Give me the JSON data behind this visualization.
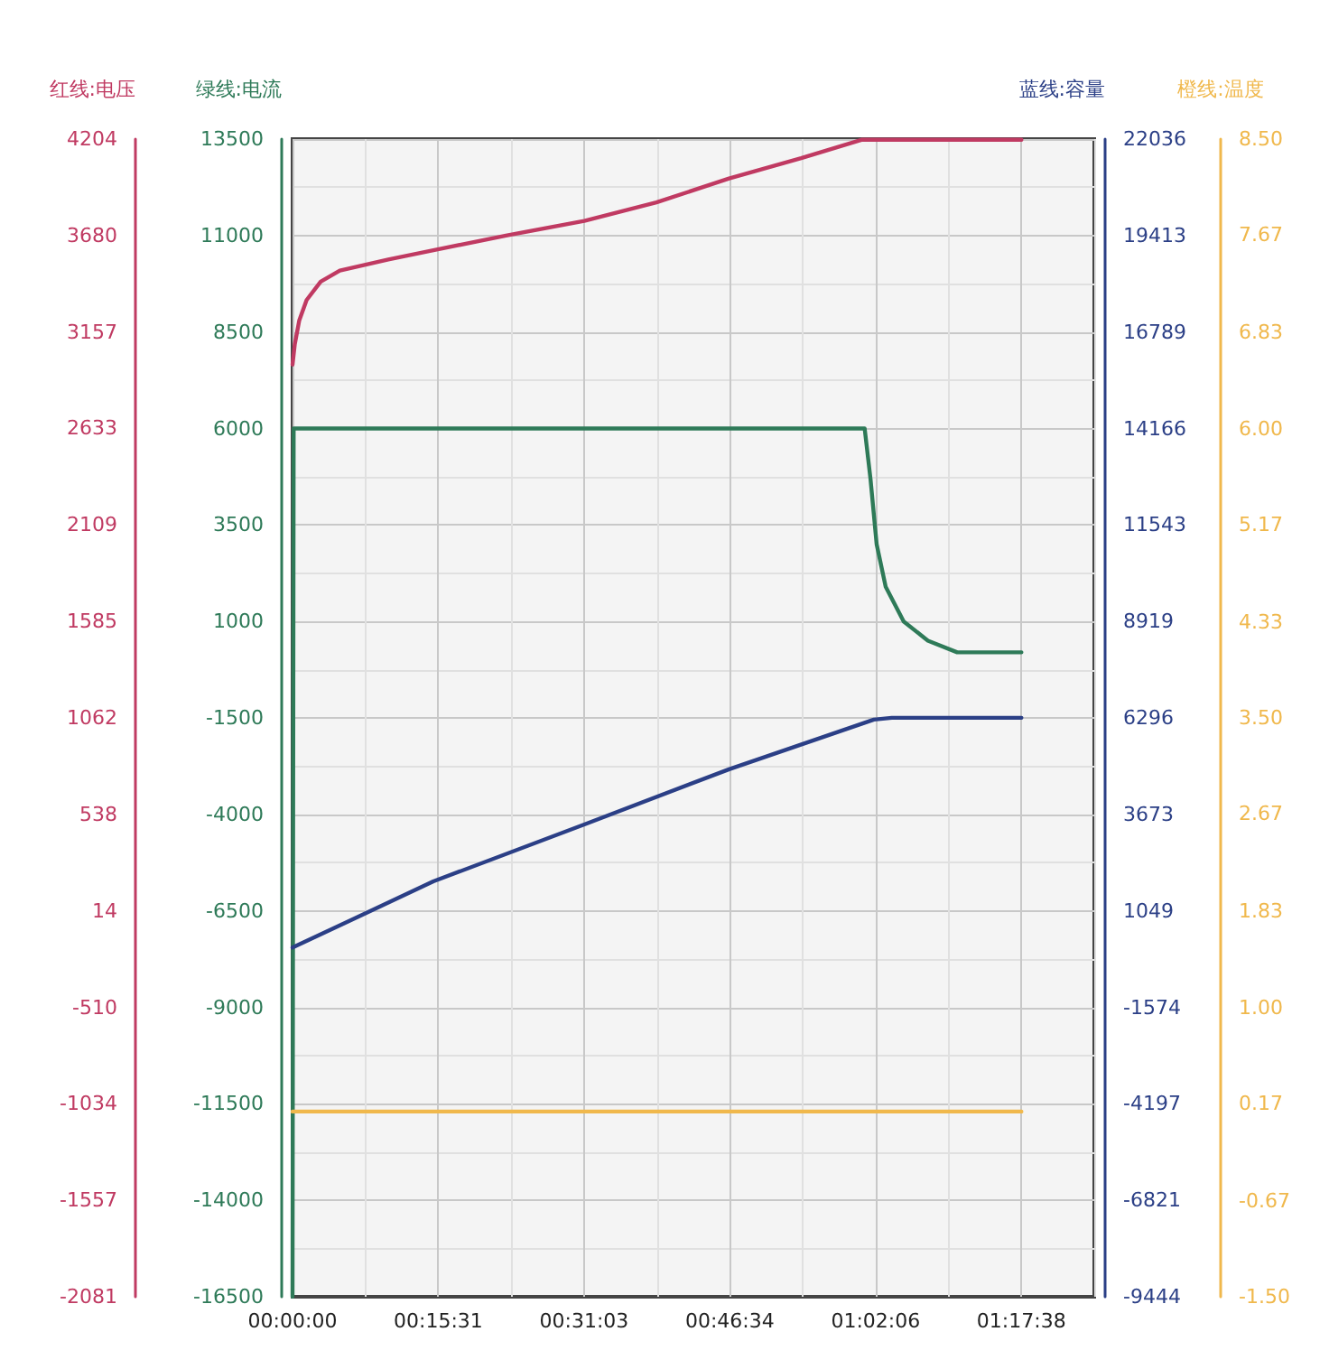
{
  "chart_data": [
    {
      "type": "line",
      "ylabel": "红线:电压",
      "y2label": "绿线:电流",
      "y3label": "蓝线:容量",
      "xlim": [
        0,
        1.4233
      ],
      "xticks": [
        {
          "value": 0,
          "label": "00:00:00"
        },
        {
          "value": 0.2586,
          "label": "00:15:31"
        },
        {
          "value": 0.5175,
          "label": "00:31:03"
        },
        {
          "value": 0.7761,
          "label": "00:46:34"
        },
        {
          "value": 1.035,
          "label": "01:02:06"
        },
        {
          "value": 1.2939,
          "label": "01:17:38"
        }
      ],
      "ylim": [
        -2081,
        4204
      ],
      "yticks": [
        -2081,
        -1557,
        -1034,
        -510,
        14,
        538,
        1062,
        1585,
        2109,
        2633,
        3157,
        3680,
        4204
      ],
      "y2lim": [
        -16500,
        13500
      ],
      "y2ticks": [
        -16500,
        -14000,
        -11500,
        -9000,
        -6500,
        -4000,
        -1500,
        1000,
        3500,
        6000,
        8500,
        11000,
        13500
      ],
      "y3lim": [
        -9444,
        22036
      ],
      "y3ticks": [
        -9444,
        -6821,
        -4197,
        -1574,
        1049,
        3673,
        6296,
        8919,
        11543,
        14166,
        16789,
        19413,
        22036
      ],
      "grid": true,
      "marker": "none",
      "line_style": "solid",
      "series": [
        {
          "color": "#c03a62",
          "axis": "y",
          "x": [
            0,
            0.004,
            0.012,
            0.025,
            0.05,
            0.084,
            0.17,
            0.25,
            0.379,
            0.518,
            0.646,
            0.775,
            0.903,
            1.01,
            1.294
          ],
          "values": [
            2980,
            3090,
            3220,
            3330,
            3430,
            3490,
            3550,
            3600,
            3680,
            3760,
            3860,
            3990,
            4100,
            4200,
            4200
          ]
        },
        {
          "color": "#2e7a58",
          "axis": "y2",
          "x": [
            0,
            0.002,
            1.0157,
            1.026,
            1.037,
            1.053,
            1.085,
            1.128,
            1.18,
            1.294
          ],
          "values": [
            -16500,
            6000,
            6000,
            4700,
            3000,
            1900,
            1000,
            500,
            200,
            200
          ]
        },
        {
          "color": "#2b3f86",
          "axis": "y3",
          "x": [
            0,
            0.25,
            0.518,
            0.775,
            1.032,
            1.064,
            1.294
          ],
          "values": [
            50,
            1850,
            3400,
            4900,
            6250,
            6300,
            6300
          ]
        }
      ]
    },
    {
      "type": "line",
      "ylabel": "橙线:温度",
      "xlim": [
        0,
        1.4233
      ],
      "tick_labels": "y",
      "ylim": [
        -1.5,
        8.5
      ],
      "yticks": [
        {
          "value": -1.5,
          "label": "-1.50"
        },
        {
          "value": -0.67,
          "label": "-0.67"
        },
        {
          "value": 0.17,
          "label": "0.17"
        },
        {
          "value": 1,
          "label": "1.00"
        },
        {
          "value": 1.83,
          "label": "1.83"
        },
        {
          "value": 2.67,
          "label": "2.67"
        },
        {
          "value": 3.5,
          "label": "3.50"
        },
        {
          "value": 4.33,
          "label": "4.33"
        },
        {
          "value": 5.17,
          "label": "5.17"
        },
        {
          "value": 6,
          "label": "6.00"
        },
        {
          "value": 6.83,
          "label": "6.83"
        },
        {
          "value": 7.67,
          "label": "7.67"
        },
        {
          "value": 8.5,
          "label": "8.50"
        }
      ],
      "marker": "none",
      "line_style": "solid",
      "series": [
        {
          "color": "#f0b84c",
          "x": [
            0,
            1.294
          ],
          "values": [
            0.1,
            0.1
          ]
        }
      ]
    }
  ]
}
